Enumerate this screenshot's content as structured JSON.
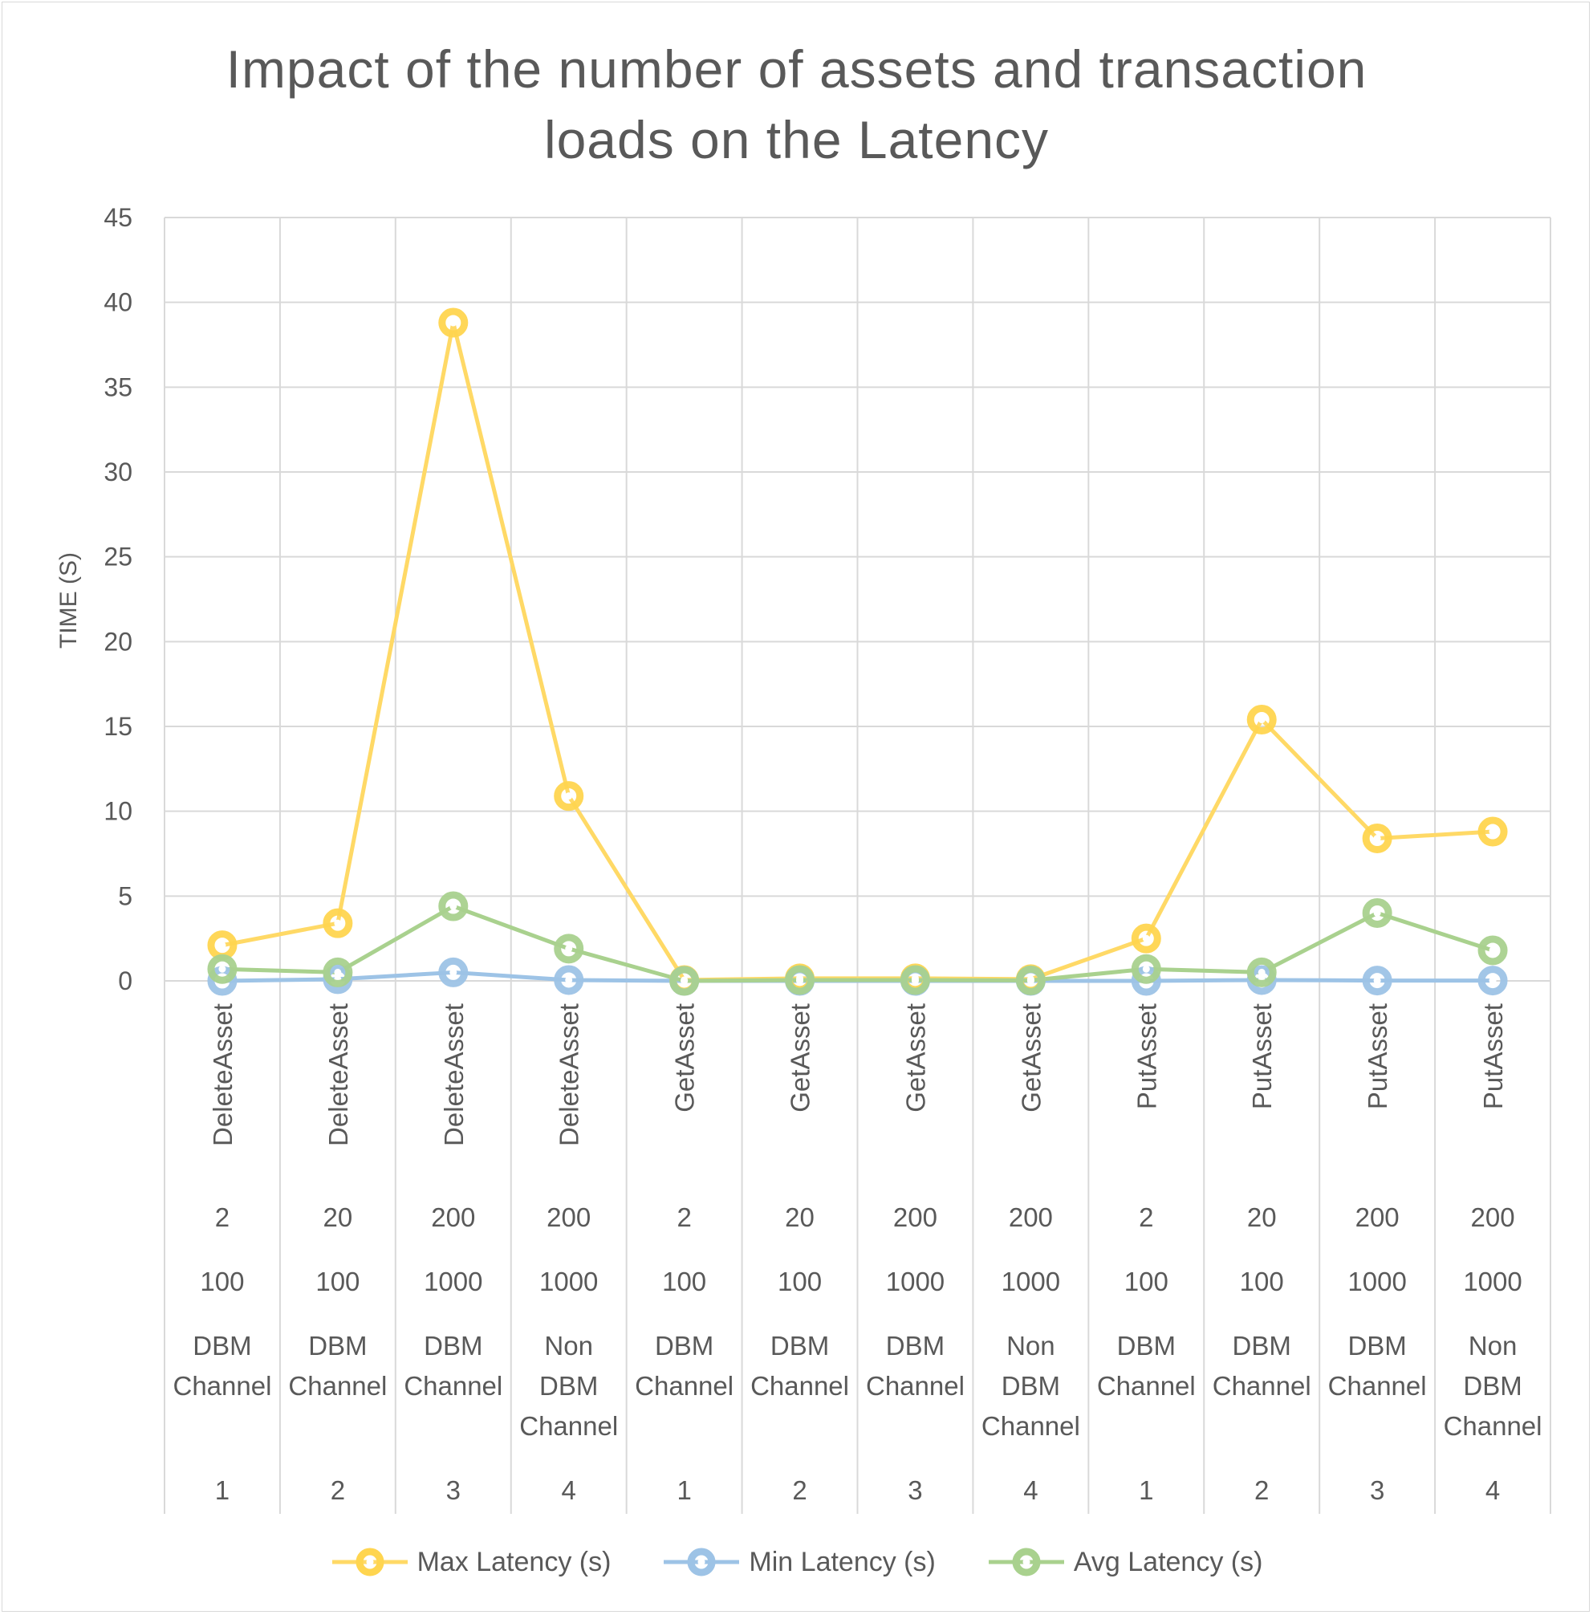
{
  "chart_data": {
    "type": "line",
    "title": "Impact of the number of assets and transaction loads on the Latency",
    "xlabel": "",
    "ylabel": "TIME (S)",
    "ylim": [
      0,
      45
    ],
    "yticks": [
      0,
      5,
      10,
      15,
      20,
      25,
      30,
      35,
      40,
      45
    ],
    "grid": true,
    "legend_position": "bottom",
    "categories": [
      {
        "function": "DeleteAsset",
        "assets": "2",
        "load": "100",
        "channel": [
          "DBM",
          "Channel"
        ],
        "id": "1"
      },
      {
        "function": "DeleteAsset",
        "assets": "20",
        "load": "100",
        "channel": [
          "DBM",
          "Channel"
        ],
        "id": "2"
      },
      {
        "function": "DeleteAsset",
        "assets": "200",
        "load": "1000",
        "channel": [
          "DBM",
          "Channel"
        ],
        "id": "3"
      },
      {
        "function": "DeleteAsset",
        "assets": "200",
        "load": "1000",
        "channel": [
          "Non",
          "DBM",
          "Channel"
        ],
        "id": "4"
      },
      {
        "function": "GetAsset",
        "assets": "2",
        "load": "100",
        "channel": [
          "DBM",
          "Channel"
        ],
        "id": "1"
      },
      {
        "function": "GetAsset",
        "assets": "20",
        "load": "100",
        "channel": [
          "DBM",
          "Channel"
        ],
        "id": "2"
      },
      {
        "function": "GetAsset",
        "assets": "200",
        "load": "1000",
        "channel": [
          "DBM",
          "Channel"
        ],
        "id": "3"
      },
      {
        "function": "GetAsset",
        "assets": "200",
        "load": "1000",
        "channel": [
          "Non",
          "DBM",
          "Channel"
        ],
        "id": "4"
      },
      {
        "function": "PutAsset",
        "assets": "2",
        "load": "100",
        "channel": [
          "DBM",
          "Channel"
        ],
        "id": "1"
      },
      {
        "function": "PutAsset",
        "assets": "20",
        "load": "100",
        "channel": [
          "DBM",
          "Channel"
        ],
        "id": "2"
      },
      {
        "function": "PutAsset",
        "assets": "200",
        "load": "1000",
        "channel": [
          "DBM",
          "Channel"
        ],
        "id": "3"
      },
      {
        "function": "PutAsset",
        "assets": "200",
        "load": "1000",
        "channel": [
          "Non",
          "DBM",
          "Channel"
        ],
        "id": "4"
      }
    ],
    "series": [
      {
        "name": "Max Latency (s)",
        "color": "#ffd966",
        "marker_color": "#ffd54f",
        "values": [
          2.1,
          3.4,
          38.8,
          10.9,
          0.05,
          0.15,
          0.15,
          0.1,
          2.5,
          15.4,
          8.4,
          8.8
        ]
      },
      {
        "name": "Min Latency (s)",
        "color": "#9dc3e6",
        "marker_color": "#9dc3e6",
        "values": [
          0.0,
          0.1,
          0.5,
          0.05,
          0.0,
          0.0,
          0.0,
          0.0,
          0.0,
          0.05,
          0.02,
          0.02
        ]
      },
      {
        "name": "Avg Latency (s)",
        "color": "#a9d18e",
        "marker_color": "#a9d18e",
        "values": [
          0.7,
          0.5,
          4.4,
          1.9,
          0.0,
          0.05,
          0.05,
          0.03,
          0.7,
          0.5,
          4.0,
          1.8
        ]
      }
    ]
  }
}
